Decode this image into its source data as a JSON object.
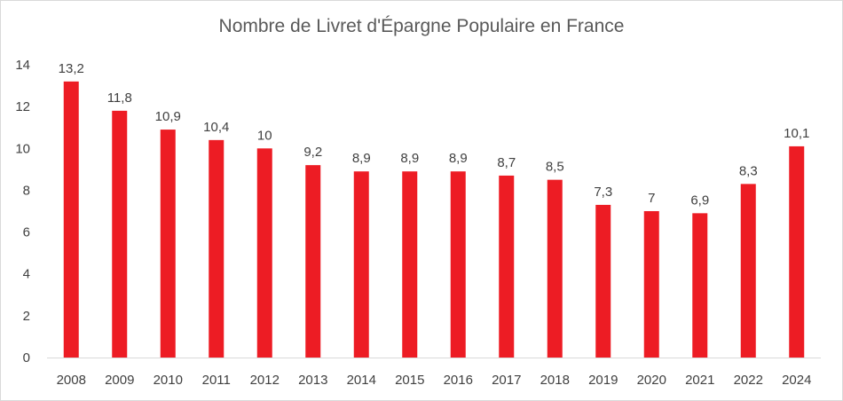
{
  "chart_data": {
    "type": "bar",
    "title": "Nombre de Livret d'Épargne Populaire en France",
    "xlabel": "",
    "ylabel": "",
    "categories": [
      "2008",
      "2009",
      "2010",
      "2011",
      "2012",
      "2013",
      "2014",
      "2015",
      "2016",
      "2017",
      "2018",
      "2019",
      "2020",
      "2021",
      "2022",
      "2024"
    ],
    "values": [
      13.2,
      11.8,
      10.9,
      10.4,
      10,
      9.2,
      8.9,
      8.9,
      8.9,
      8.7,
      8.5,
      7.3,
      7,
      6.9,
      8.3,
      10.1
    ],
    "data_labels": [
      "13,2",
      "11,8",
      "10,9",
      "10,4",
      "10",
      "9,2",
      "8,9",
      "8,9",
      "8,9",
      "8,7",
      "8,5",
      "7,3",
      "7",
      "6,9",
      "8,3",
      "10,1"
    ],
    "ylim": [
      0,
      14
    ],
    "yticks": [
      0,
      2,
      4,
      6,
      8,
      10,
      12,
      14
    ],
    "grid": false,
    "legend": "none",
    "bar_color": "#ed1c24"
  }
}
